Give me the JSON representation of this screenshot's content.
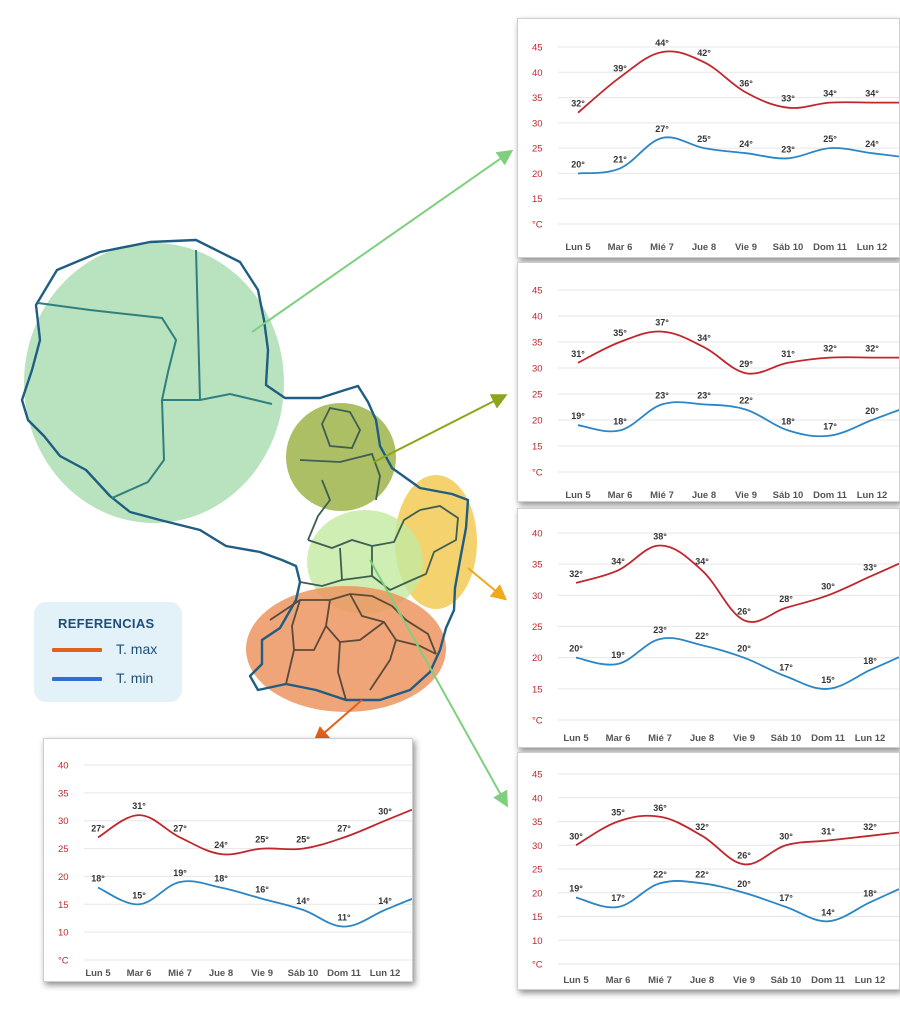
{
  "legend": {
    "title": "REFERENCIAS",
    "max_label": "T. max",
    "min_label": "T. min",
    "max_color": "#e0601c",
    "min_color": "#2e6fd4"
  },
  "colors": {
    "max_line": "#c0272d",
    "min_line": "#2b86c5",
    "axis_text": "#c0272d",
    "region_north": "#a8dcae",
    "region_center_north": "#9fb44a",
    "region_east": "#f1c84a",
    "region_center": "#c3eaa0",
    "region_south": "#ec9560",
    "border": "#1f5d82"
  },
  "chart_data": [
    {
      "id": "chaco",
      "type": "line",
      "categories": [
        "Lun 5",
        "Mar 6",
        "Mié 7",
        "Jue 8",
        "Vie 9",
        "Sáb 10",
        "Dom 11",
        "Lun 12"
      ],
      "y_ticks": [
        "45",
        "40",
        "35",
        "30",
        "25",
        "20",
        "15",
        "°C"
      ],
      "ylim": [
        10,
        45
      ],
      "series": [
        {
          "values": [
            32,
            39,
            44,
            42,
            36,
            33,
            34,
            34
          ],
          "labels": [
            "32°",
            "39°",
            "44°",
            "42°",
            "36°",
            "33°",
            "34°",
            "34°"
          ]
        },
        {
          "values": [
            20,
            21,
            27,
            25,
            24,
            23,
            25,
            24
          ],
          "labels": [
            "20°",
            "21°",
            "27°",
            "25°",
            "24°",
            "23°",
            "25°",
            "24°"
          ]
        }
      ]
    },
    {
      "id": "norte",
      "type": "line",
      "categories": [
        "Lun 5",
        "Mar 6",
        "Mié 7",
        "Jue 8",
        "Vie 9",
        "Sáb 10",
        "Dom 11",
        "Lun 12"
      ],
      "y_ticks": [
        "45",
        "40",
        "35",
        "30",
        "25",
        "20",
        "15",
        "°C"
      ],
      "ylim": [
        10,
        45
      ],
      "series": [
        {
          "values": [
            31,
            35,
            37,
            34,
            29,
            31,
            32,
            32
          ],
          "labels": [
            "31°",
            "35°",
            "37°",
            "34°",
            "29°",
            "31°",
            "32°",
            "32°"
          ]
        },
        {
          "values": [
            19,
            18,
            23,
            23,
            22,
            18,
            17,
            20
          ],
          "labels": [
            "19°",
            "18°",
            "23°",
            "23°",
            "22°",
            "18°",
            "17°",
            "20°"
          ]
        }
      ]
    },
    {
      "id": "este",
      "type": "line",
      "categories": [
        "Lun 5",
        "Mar 6",
        "Mié 7",
        "Jue 8",
        "Vie 9",
        "Sáb 10",
        "Dom 11",
        "Lun 12"
      ],
      "y_ticks": [
        "40",
        "35",
        "30",
        "25",
        "20",
        "15",
        "°C"
      ],
      "ylim": [
        10,
        40
      ],
      "series": [
        {
          "values": [
            32,
            34,
            38,
            34,
            26,
            28,
            30,
            33
          ],
          "labels": [
            "32°",
            "34°",
            "38°",
            "34°",
            "26°",
            "28°",
            "30°",
            "33°"
          ]
        },
        {
          "values": [
            20,
            19,
            23,
            22,
            20,
            17,
            15,
            18
          ],
          "labels": [
            "20°",
            "19°",
            "23°",
            "22°",
            "20°",
            "17°",
            "15°",
            "18°"
          ]
        }
      ]
    },
    {
      "id": "centro",
      "type": "line",
      "categories": [
        "Lun 5",
        "Mar 6",
        "Mié 7",
        "Jue 8",
        "Vie 9",
        "Sáb 10",
        "Dom 11",
        "Lun 12"
      ],
      "y_ticks": [
        "45",
        "40",
        "35",
        "30",
        "25",
        "20",
        "15",
        "10",
        "°C"
      ],
      "ylim": [
        5,
        45
      ],
      "series": [
        {
          "values": [
            30,
            35,
            36,
            32,
            26,
            30,
            31,
            32
          ],
          "labels": [
            "30°",
            "35°",
            "36°",
            "32°",
            "26°",
            "30°",
            "31°",
            "32°"
          ]
        },
        {
          "values": [
            19,
            17,
            22,
            22,
            20,
            17,
            14,
            18
          ],
          "labels": [
            "19°",
            "17°",
            "22°",
            "22°",
            "20°",
            "17°",
            "14°",
            "18°"
          ]
        }
      ]
    },
    {
      "id": "sur",
      "type": "line",
      "categories": [
        "Lun 5",
        "Mar 6",
        "Mié 7",
        "Jue 8",
        "Vie 9",
        "Sáb 10",
        "Dom 11",
        "Lun 12"
      ],
      "y_ticks": [
        "40",
        "35",
        "30",
        "25",
        "20",
        "15",
        "10",
        "°C"
      ],
      "ylim": [
        5,
        40
      ],
      "series": [
        {
          "values": [
            27,
            31,
            27,
            24,
            25,
            25,
            27,
            30
          ],
          "labels": [
            "27°",
            "31°",
            "27°",
            "24°",
            "25°",
            "25°",
            "27°",
            "30°"
          ]
        },
        {
          "values": [
            18,
            15,
            19,
            18,
            16,
            14,
            11,
            14
          ],
          "labels": [
            "18°",
            "15°",
            "19°",
            "18°",
            "16°",
            "14°",
            "11°",
            "14°"
          ]
        }
      ]
    }
  ]
}
